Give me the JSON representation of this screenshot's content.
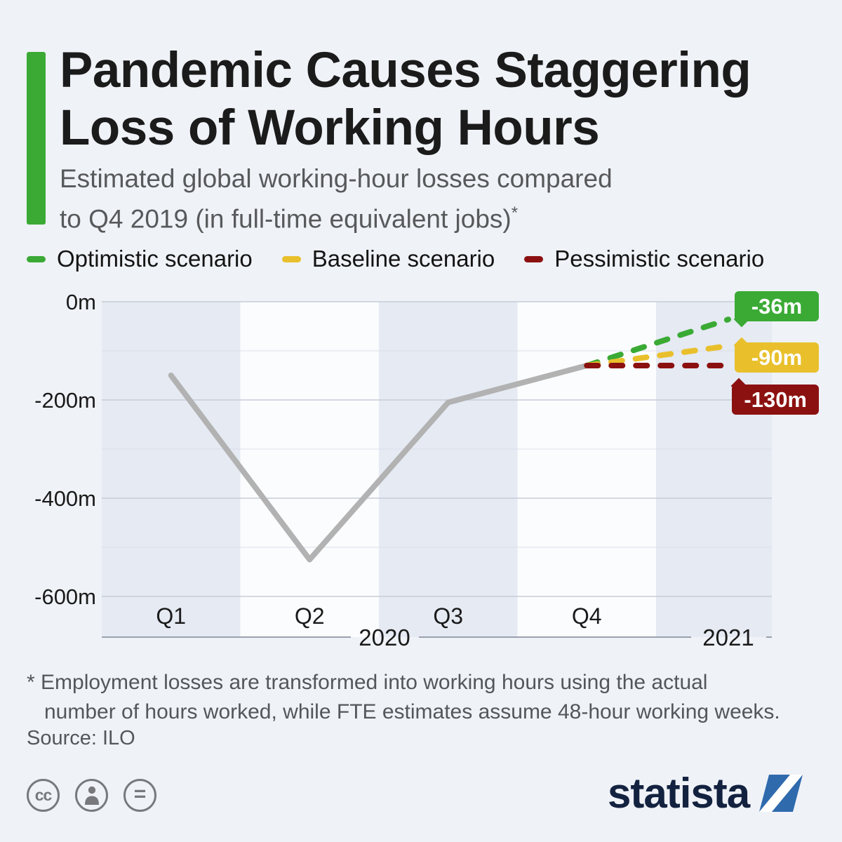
{
  "header": {
    "title_line1": "Pandemic Causes Staggering",
    "title_line2": "Loss of Working Hours",
    "subtitle_line1": "Estimated global working-hour losses compared",
    "subtitle_line2": "to Q4 2019 (in full-time equivalent jobs)",
    "footnote_mark": "*",
    "accent_color": "#3aaa35"
  },
  "legend": [
    {
      "label": "Optimistic scenario",
      "color": "#3aaa35"
    },
    {
      "label": "Baseline scenario",
      "color": "#e9c02c"
    },
    {
      "label": "Pessimistic scenario",
      "color": "#8b1110"
    }
  ],
  "chart_data": {
    "type": "line",
    "title": "Estimated global working-hour losses compared to Q4 2019 (in full-time equivalent jobs)",
    "unit": "millions of full-time equivalent jobs",
    "x_categories": [
      "Q1",
      "Q2",
      "Q3",
      "Q4"
    ],
    "year_labels": [
      "2020",
      "2021"
    ],
    "y_ticks": [
      "0m",
      "-200m",
      "-400m",
      "-600m"
    ],
    "y_tick_values": [
      0,
      -200,
      -400,
      -600
    ],
    "ylim": [
      -680,
      0
    ],
    "grid": true,
    "actual_series": {
      "name": "2020 quarterly working-hour losses",
      "values": [
        -150,
        -525,
        -205,
        -130
      ],
      "color": "#b2b2b2"
    },
    "projections": [
      {
        "name": "Optimistic scenario",
        "end_value": -36,
        "label": "-36m",
        "color": "#3aaa35"
      },
      {
        "name": "Baseline scenario",
        "end_value": -90,
        "label": "-90m",
        "color": "#e9c02c"
      },
      {
        "name": "Pessimistic scenario",
        "end_value": -130,
        "label": "-130m",
        "color": "#8b1110"
      }
    ],
    "colors": {
      "plot_bg": "#fbfcfe",
      "band": "#e5eaf3",
      "grid_major": "#c6ccd8",
      "grid_minor": "#dbdfe8",
      "axis": "#9aa1ad"
    }
  },
  "footnote": {
    "line1": "* Employment losses are transformed into working hours using the actual",
    "line2": "number of hours worked, while FTE estimates assume 48-hour working weeks.",
    "source": "Source: ILO"
  },
  "footer": {
    "brand": "statista",
    "cc_glyph": "cc",
    "equal_glyph": "=",
    "brand_color": "#13223f",
    "logo_color": "#2f6aad"
  }
}
